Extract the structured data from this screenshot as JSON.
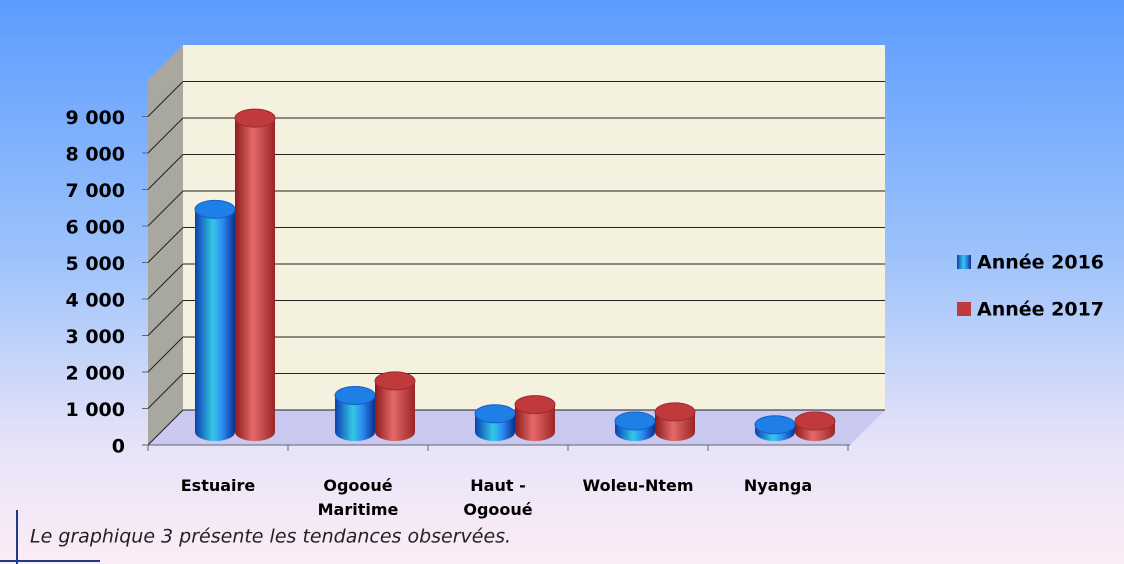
{
  "chart_data": {
    "type": "bar3d",
    "categories": [
      "Estuaire",
      "Ogooué Maritime",
      "Haut - Ogooué",
      "Woleu-Ntem",
      "Nyanga"
    ],
    "series": [
      {
        "name": "Année 2016",
        "color": "#1e7fe6",
        "values": [
          6100,
          1000,
          500,
          300,
          200
        ]
      },
      {
        "name": "Année 2017",
        "color": "#c0393b",
        "values": [
          8600,
          1400,
          750,
          550,
          300
        ]
      }
    ],
    "ylim": [
      0,
      10000
    ],
    "yticks": [
      0,
      {
        "value": 1000,
        "label": "1 000"
      },
      {
        "value": 2000,
        "label": "2 000"
      },
      {
        "value": 3000,
        "label": "3 000"
      },
      {
        "value": 4000,
        "label": "4 000"
      },
      {
        "value": 5000,
        "label": "5 000"
      },
      {
        "value": 6000,
        "label": "6 000"
      },
      {
        "value": 7000,
        "label": "7 000"
      },
      {
        "value": 8000,
        "label": "8 000"
      },
      {
        "value": 9000,
        "label": "9 000"
      }
    ],
    "grid": true,
    "legend": "right",
    "caption": "Le graphique 3 présente les tendances observées."
  }
}
